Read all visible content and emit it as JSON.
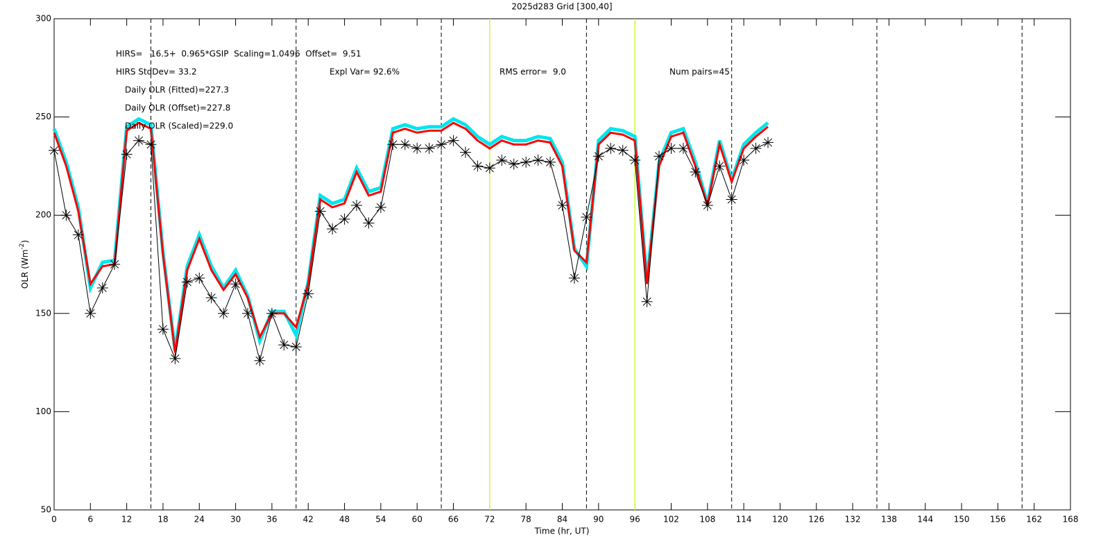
{
  "chart_data": {
    "type": "line",
    "title": "2025d283 Grid [300,40]",
    "xlabel": "Time (hr, UT)",
    "ylabel": {
      "text": "OLR (Wm",
      "sup": "-2",
      "end": ")"
    },
    "annotations": [
      "HIRS=   16.5+  0.965*GSIP  Scaling=1.0496  Offset=  9.51",
      "HIRS StdDev= 33.2",
      "Expl Var= 92.6%",
      "RMS error=  9.0",
      "Num pairs=45",
      "Daily OLR (Fitted)=227.3",
      "Daily OLR (Offset)=227.8",
      "Daily OLR (Scaled)=229.0"
    ],
    "x": [
      0,
      2,
      4,
      6,
      8,
      10,
      12,
      14,
      16,
      18,
      20,
      22,
      24,
      26,
      28,
      30,
      32,
      34,
      36,
      38,
      40,
      42,
      44,
      46,
      48,
      50,
      52,
      54,
      56,
      58,
      60,
      62,
      64,
      66,
      68,
      70,
      72,
      74,
      76,
      78,
      80,
      82,
      84,
      86,
      88,
      90,
      92,
      94,
      96,
      98,
      100,
      102,
      104,
      106,
      108,
      110,
      112,
      114,
      116,
      118
    ],
    "series": [
      {
        "color": "#000000",
        "marker": "asterisk",
        "width": 1,
        "values": [
          233,
          200,
          190,
          150,
          163,
          175,
          231,
          238,
          236,
          142,
          127,
          166,
          168,
          158,
          150,
          165,
          150,
          126,
          150,
          134,
          133,
          160,
          202,
          193,
          198,
          205,
          196,
          204,
          236,
          236,
          234,
          234,
          236,
          238,
          232,
          225,
          224,
          228,
          226,
          227,
          228,
          227,
          205,
          168,
          199,
          230,
          234,
          233,
          228,
          156,
          230,
          234,
          234,
          222,
          205,
          225,
          208,
          228,
          234,
          237
        ]
      },
      {
        "color": "#00e5ee",
        "marker": "none",
        "width": 5,
        "values": [
          244,
          227,
          204,
          163,
          176,
          177,
          245,
          249,
          246,
          181,
          131,
          174,
          190,
          174,
          163,
          172,
          159,
          136,
          151,
          151,
          139,
          166,
          210,
          206,
          208,
          224,
          212,
          214,
          244,
          246,
          244,
          245,
          245,
          249,
          246,
          240,
          236,
          240,
          238,
          238,
          240,
          239,
          227,
          183,
          174,
          238,
          244,
          243,
          240,
          166,
          227,
          242,
          244,
          227,
          206,
          238,
          218,
          236,
          242,
          247
        ]
      },
      {
        "color": "#ff0000",
        "marker": "none",
        "width": 3,
        "values": [
          242,
          225,
          202,
          165,
          174,
          175,
          243,
          247,
          244,
          180,
          130,
          172,
          188,
          172,
          162,
          170,
          158,
          138,
          150,
          150,
          143,
          165,
          208,
          204,
          206,
          222,
          210,
          212,
          242,
          244,
          242,
          243,
          243,
          247,
          244,
          238,
          234,
          238,
          236,
          236,
          238,
          237,
          225,
          182,
          176,
          236,
          242,
          241,
          238,
          165,
          225,
          240,
          242,
          225,
          205,
          236,
          217,
          234,
          240,
          245
        ]
      }
    ],
    "xlim": [
      0,
      168
    ],
    "ylim": [
      50,
      300
    ],
    "xticks": [
      0,
      6,
      12,
      18,
      24,
      30,
      36,
      42,
      48,
      54,
      60,
      66,
      72,
      78,
      84,
      90,
      96,
      102,
      108,
      114,
      120,
      126,
      132,
      138,
      144,
      150,
      156,
      162,
      168
    ],
    "yticks": [
      50,
      100,
      150,
      200,
      250,
      300
    ],
    "vlines": [
      16,
      40,
      64,
      88,
      112,
      136,
      160
    ],
    "vline_color": "#000000",
    "hlines": [
      72,
      96
    ],
    "hline_color": "#ccff33"
  }
}
